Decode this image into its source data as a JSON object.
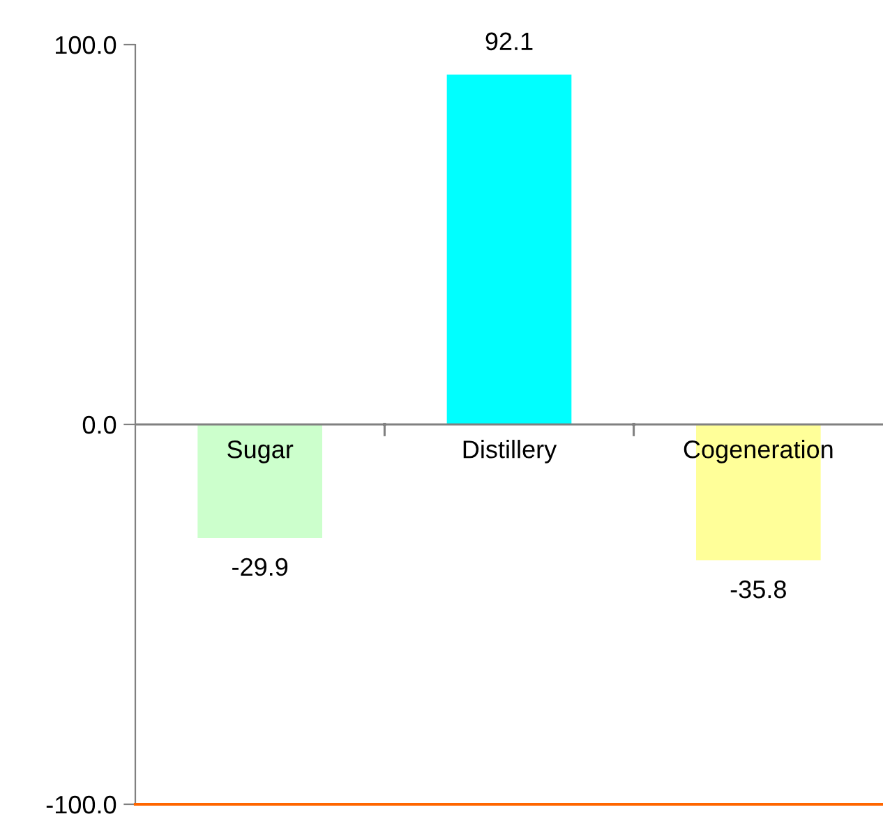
{
  "chart_data": {
    "type": "bar",
    "categories": [
      "Sugar",
      "Distillery",
      "Cogeneration"
    ],
    "values": [
      -29.9,
      92.1,
      -35.8
    ],
    "colors": [
      "#ccffcc",
      "#00ffff",
      "#ffff99"
    ],
    "ylim": [
      -100,
      100
    ],
    "yticks": [
      {
        "value": -100,
        "label": "-100.0"
      },
      {
        "value": 0,
        "label": "0.0"
      },
      {
        "value": 100,
        "label": "100.0"
      }
    ],
    "ref_lines": [
      {
        "axis": "y",
        "value": -100,
        "color": "#ff6600"
      }
    ],
    "data_labels": true,
    "grid": false,
    "legend": false
  }
}
